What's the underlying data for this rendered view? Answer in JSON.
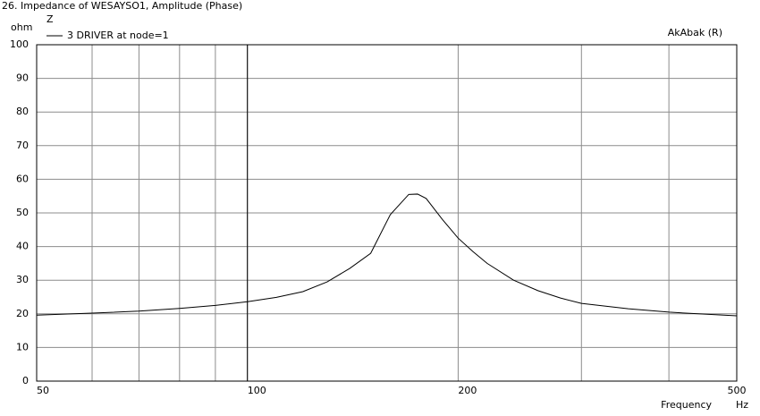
{
  "chart_data": {
    "type": "line",
    "title": "26. Impedance of WESAYSO1, Amplitude (Phase)",
    "legend_title": "Z",
    "watermark": "AkAbak (R)",
    "y_unit": "ohm",
    "xlabel": "Frequency",
    "x_unit": "Hz",
    "x": [
      50,
      60,
      70,
      80,
      90,
      100,
      110,
      120,
      130,
      140,
      150,
      160,
      170,
      175,
      180,
      190,
      200,
      210,
      220,
      240,
      260,
      280,
      300,
      350,
      400,
      450,
      500
    ],
    "series": [
      {
        "name": "3 DRIVER  at node=1",
        "color": "#000000",
        "values": [
          19.6,
          20.2,
          20.8,
          21.6,
          22.5,
          23.6,
          24.9,
          26.6,
          29.5,
          33.5,
          38,
          49.5,
          55.5,
          55.6,
          54.3,
          48,
          42.5,
          38.5,
          35,
          30,
          26.9,
          24.7,
          23.1,
          21.5,
          20.5,
          19.9,
          19.4
        ]
      }
    ],
    "xscale": "log",
    "xlim": [
      50,
      500
    ],
    "xticks": [
      50,
      100,
      200,
      500
    ],
    "xminor": [
      60,
      70,
      80,
      90,
      300,
      400
    ],
    "xmajor_line": 100,
    "ylim": [
      0,
      100
    ],
    "yticks": [
      0,
      10,
      20,
      30,
      40,
      50,
      60,
      70,
      80,
      90,
      100
    ],
    "grid": true
  }
}
